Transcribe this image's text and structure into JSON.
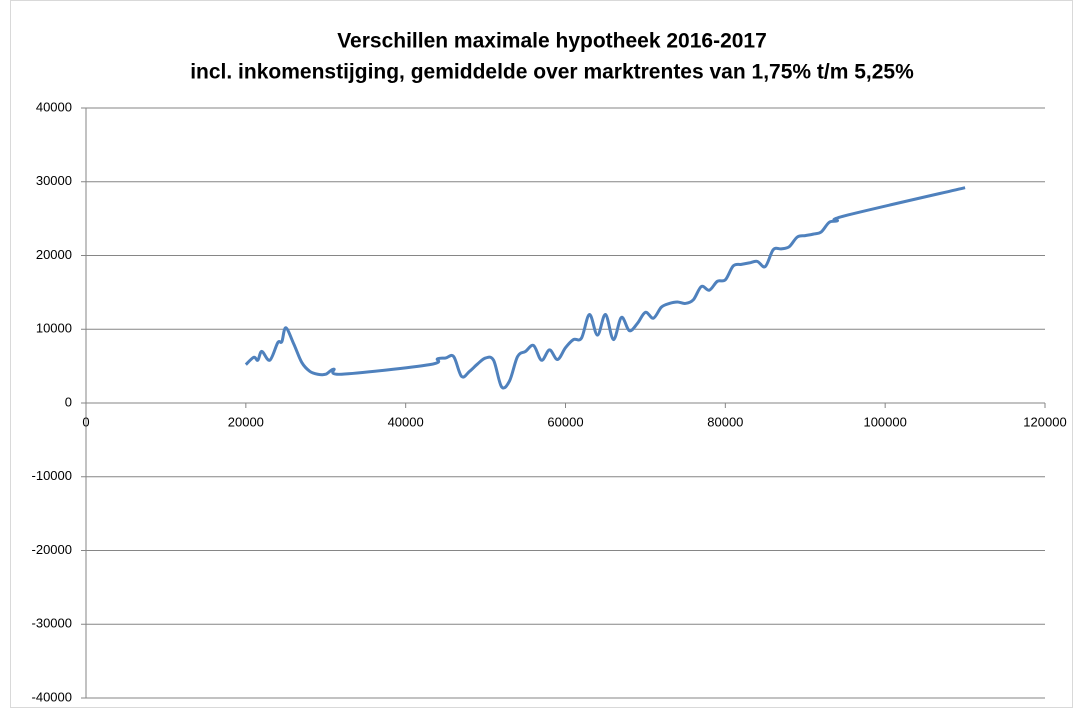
{
  "chart_data": {
    "type": "line",
    "title": "Verschillen maximale hypotheek 2016-2017",
    "subtitle": "incl. inkomenstijging,  gemiddelde over marktrentes  van 1,75% t/m 5,25%",
    "smooth": true,
    "grid": true,
    "xlim": [
      0,
      120000
    ],
    "xticks": [
      0,
      20000,
      40000,
      60000,
      80000,
      100000,
      120000
    ],
    "ylim": [
      -40000,
      40000
    ],
    "yticks": [
      -40000,
      -30000,
      -20000,
      -10000,
      0,
      10000,
      20000,
      30000,
      40000
    ],
    "series": [
      {
        "color": "#4f81bd",
        "x": [
          20000,
          21000,
          21500,
          22000,
          23000,
          24000,
          24500,
          25000,
          26000,
          27000,
          28000,
          29000,
          30000,
          31000,
          32000,
          43000,
          44000,
          45000,
          46000,
          47000,
          48000,
          49000,
          50000,
          51000,
          52000,
          53000,
          54000,
          55000,
          56000,
          57000,
          58000,
          59000,
          60000,
          61000,
          62000,
          63000,
          64000,
          65000,
          66000,
          67000,
          68000,
          69000,
          70000,
          71000,
          72000,
          73000,
          74000,
          75000,
          76000,
          77000,
          78000,
          79000,
          80000,
          81000,
          82000,
          83000,
          84000,
          85000,
          86000,
          87000,
          88000,
          89000,
          90000,
          91000,
          92000,
          93000,
          94000,
          95000,
          110000
        ],
        "values": [
          5200,
          6200,
          5800,
          7000,
          5800,
          8200,
          8300,
          10200,
          8000,
          5500,
          4300,
          3900,
          3900,
          4600,
          3900,
          5200,
          6000,
          6100,
          6300,
          3600,
          4300,
          5300,
          6100,
          5800,
          2200,
          3000,
          6300,
          7000,
          7800,
          5800,
          7200,
          5900,
          7500,
          8600,
          8800,
          12000,
          9200,
          12000,
          8600,
          11600,
          9800,
          10800,
          12300,
          11500,
          13000,
          13500,
          13700,
          13500,
          14000,
          15800,
          15300,
          16500,
          16700,
          18600,
          18800,
          19000,
          19200,
          18500,
          20800,
          20900,
          21200,
          22500,
          22700,
          22900,
          23200,
          24500,
          24700,
          25400,
          29200
        ]
      }
    ]
  }
}
